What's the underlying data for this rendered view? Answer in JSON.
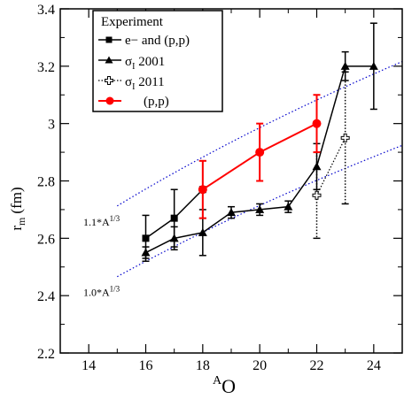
{
  "chart_data": {
    "type": "line",
    "xlabel": "O",
    "xlabel_superscript": "A",
    "ylabel": "r",
    "ylabel_subscript": "m",
    "ylabel_unit": "(fm)",
    "xlim": [
      13,
      25
    ],
    "ylim": [
      2.2,
      3.4
    ],
    "xticks": [
      14,
      16,
      18,
      20,
      22,
      24
    ],
    "xtick_labels": [
      "14",
      "16",
      "18",
      "20",
      "22",
      "24"
    ],
    "yticks": [
      2.2,
      2.4,
      2.6,
      2.8,
      3.0,
      3.2,
      3.4
    ],
    "ytick_labels": [
      "2.2",
      "2.4",
      "2.6",
      "2.8",
      "3",
      "3.2",
      "3.4"
    ],
    "grid": false,
    "legend": {
      "title": "Experiment",
      "position": "top-left",
      "entries": [
        {
          "label": "e− and (p,p)"
        },
        {
          "label": "σ",
          "subscript": "I",
          "suffix": " 2001"
        },
        {
          "label": "σ",
          "subscript": "I",
          "suffix": " 2011"
        },
        {
          "label": "(p,p)"
        }
      ]
    },
    "series": [
      {
        "name": "e− and (p,p)",
        "color": "#000000",
        "marker": "square",
        "line": "solid",
        "x": [
          16,
          17,
          18
        ],
        "y": [
          2.6,
          2.67,
          2.77
        ],
        "err": [
          0.08,
          0.1,
          0.1
        ]
      },
      {
        "name": "σI 2001",
        "color": "#000000",
        "marker": "triangle",
        "line": "solid",
        "x": [
          16,
          17,
          18,
          19,
          20,
          21,
          22,
          23,
          24
        ],
        "y": [
          2.55,
          2.6,
          2.62,
          2.69,
          2.7,
          2.71,
          2.85,
          3.2,
          3.2
        ],
        "err": [
          0.02,
          0.04,
          0.08,
          0.02,
          0.02,
          0.02,
          0.08,
          0.05,
          0.15
        ]
      },
      {
        "name": "σI 2011",
        "color": "#000000",
        "marker": "plus-open",
        "line": "dotted",
        "x": [
          22,
          23
        ],
        "y": [
          2.75,
          2.95
        ],
        "err": [
          0.15,
          0.23
        ]
      },
      {
        "name": "(p,p)",
        "color": "#ff0000",
        "marker": "circle",
        "line": "solid",
        "x": [
          18,
          20,
          22
        ],
        "y": [
          2.77,
          2.9,
          3.0
        ],
        "err": [
          0.1,
          0.1,
          0.1
        ]
      }
    ],
    "reference_lines": [
      {
        "label": "1.1*A",
        "superscript": "1/3",
        "coefficient": 1.1,
        "color": "#0000cc",
        "style": "dotted"
      },
      {
        "label": "1.0*A",
        "superscript": "1/3",
        "coefficient": 1.0,
        "color": "#0000cc",
        "style": "dotted"
      }
    ]
  }
}
